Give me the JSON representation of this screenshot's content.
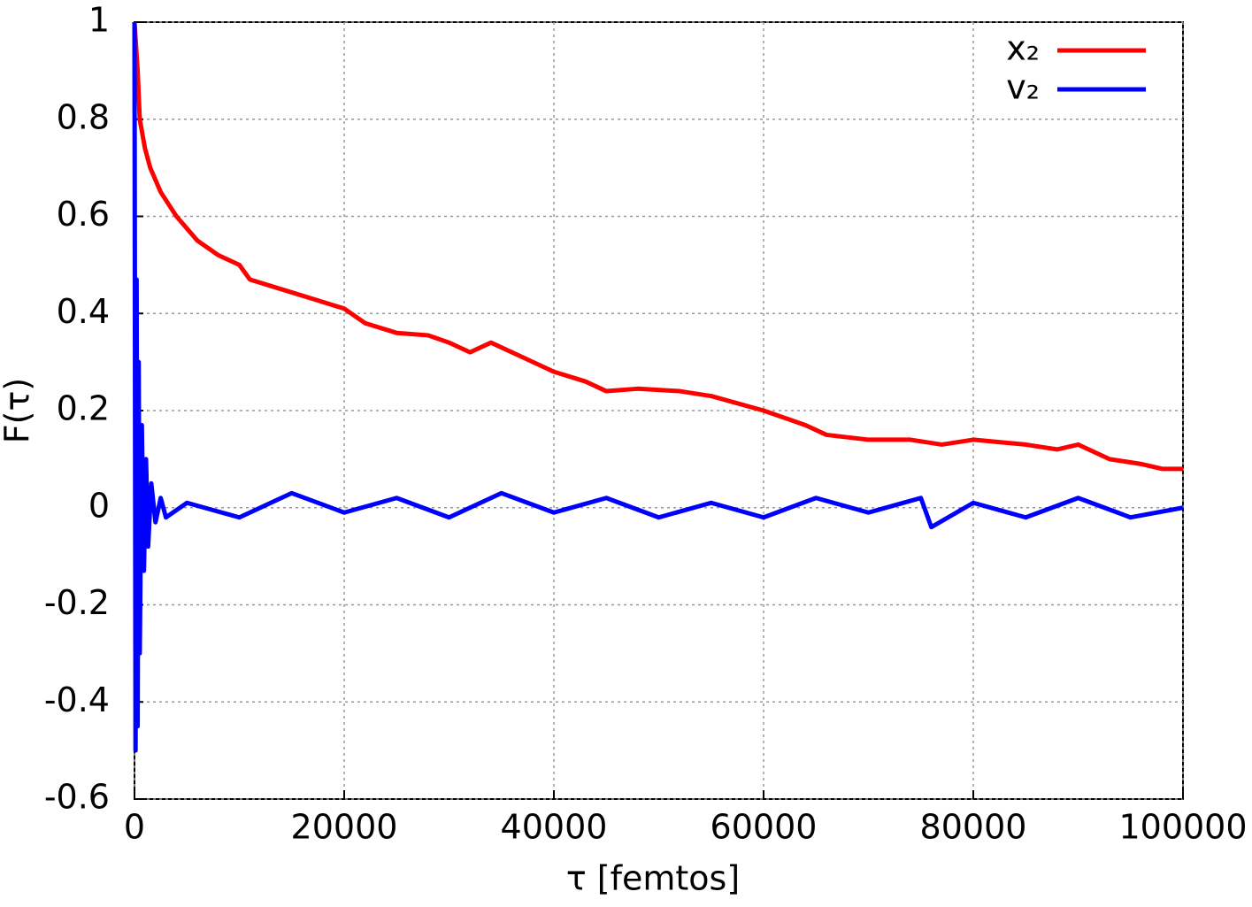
{
  "chart_data": {
    "type": "line",
    "xlabel": "τ  [femtos]",
    "ylabel": "F(τ)",
    "xlim": [
      0,
      100000
    ],
    "ylim": [
      -0.6,
      1
    ],
    "xticks": [
      0,
      20000,
      40000,
      60000,
      80000,
      100000
    ],
    "yticks": [
      -0.6,
      -0.4,
      -0.2,
      0,
      0.2,
      0.4,
      0.6,
      0.8,
      1
    ],
    "grid": true,
    "legend": "top-right",
    "series": [
      {
        "name": "x₂",
        "color": "#ff0000",
        "x": [
          0,
          300,
          500,
          1000,
          1500,
          2500,
          4000,
          6000,
          8000,
          10000,
          11000,
          14000,
          17000,
          20000,
          22000,
          25000,
          28000,
          30000,
          32000,
          34000,
          37000,
          40000,
          43000,
          45000,
          48000,
          52000,
          55000,
          60000,
          64000,
          66000,
          70000,
          74000,
          77000,
          80000,
          85000,
          88000,
          90000,
          93000,
          96000,
          98000,
          100000
        ],
        "values": [
          1,
          0.9,
          0.8,
          0.74,
          0.7,
          0.65,
          0.6,
          0.55,
          0.52,
          0.5,
          0.47,
          0.45,
          0.43,
          0.41,
          0.38,
          0.36,
          0.355,
          0.34,
          0.32,
          0.34,
          0.31,
          0.28,
          0.26,
          0.24,
          0.245,
          0.24,
          0.23,
          0.2,
          0.17,
          0.15,
          0.14,
          0.14,
          0.13,
          0.14,
          0.13,
          0.12,
          0.13,
          0.1,
          0.09,
          0.08,
          0.08
        ]
      },
      {
        "name": "v₂",
        "color": "#0000ff",
        "x": [
          0,
          100,
          200,
          300,
          400,
          500,
          700,
          900,
          1100,
          1300,
          1600,
          2000,
          2500,
          3000,
          5000,
          10000,
          15000,
          20000,
          25000,
          30000,
          35000,
          40000,
          45000,
          50000,
          55000,
          60000,
          65000,
          70000,
          75000,
          76000,
          80000,
          85000,
          90000,
          95000,
          100000
        ],
        "values": [
          1,
          -0.5,
          0.47,
          -0.45,
          0.3,
          -0.3,
          0.17,
          -0.13,
          0.1,
          -0.08,
          0.05,
          -0.03,
          0.02,
          -0.02,
          0.01,
          -0.02,
          0.03,
          -0.01,
          0.02,
          -0.02,
          0.03,
          -0.01,
          0.02,
          -0.02,
          0.01,
          -0.02,
          0.02,
          -0.01,
          0.02,
          -0.04,
          0.01,
          -0.02,
          0.02,
          -0.02,
          0
        ]
      }
    ]
  }
}
